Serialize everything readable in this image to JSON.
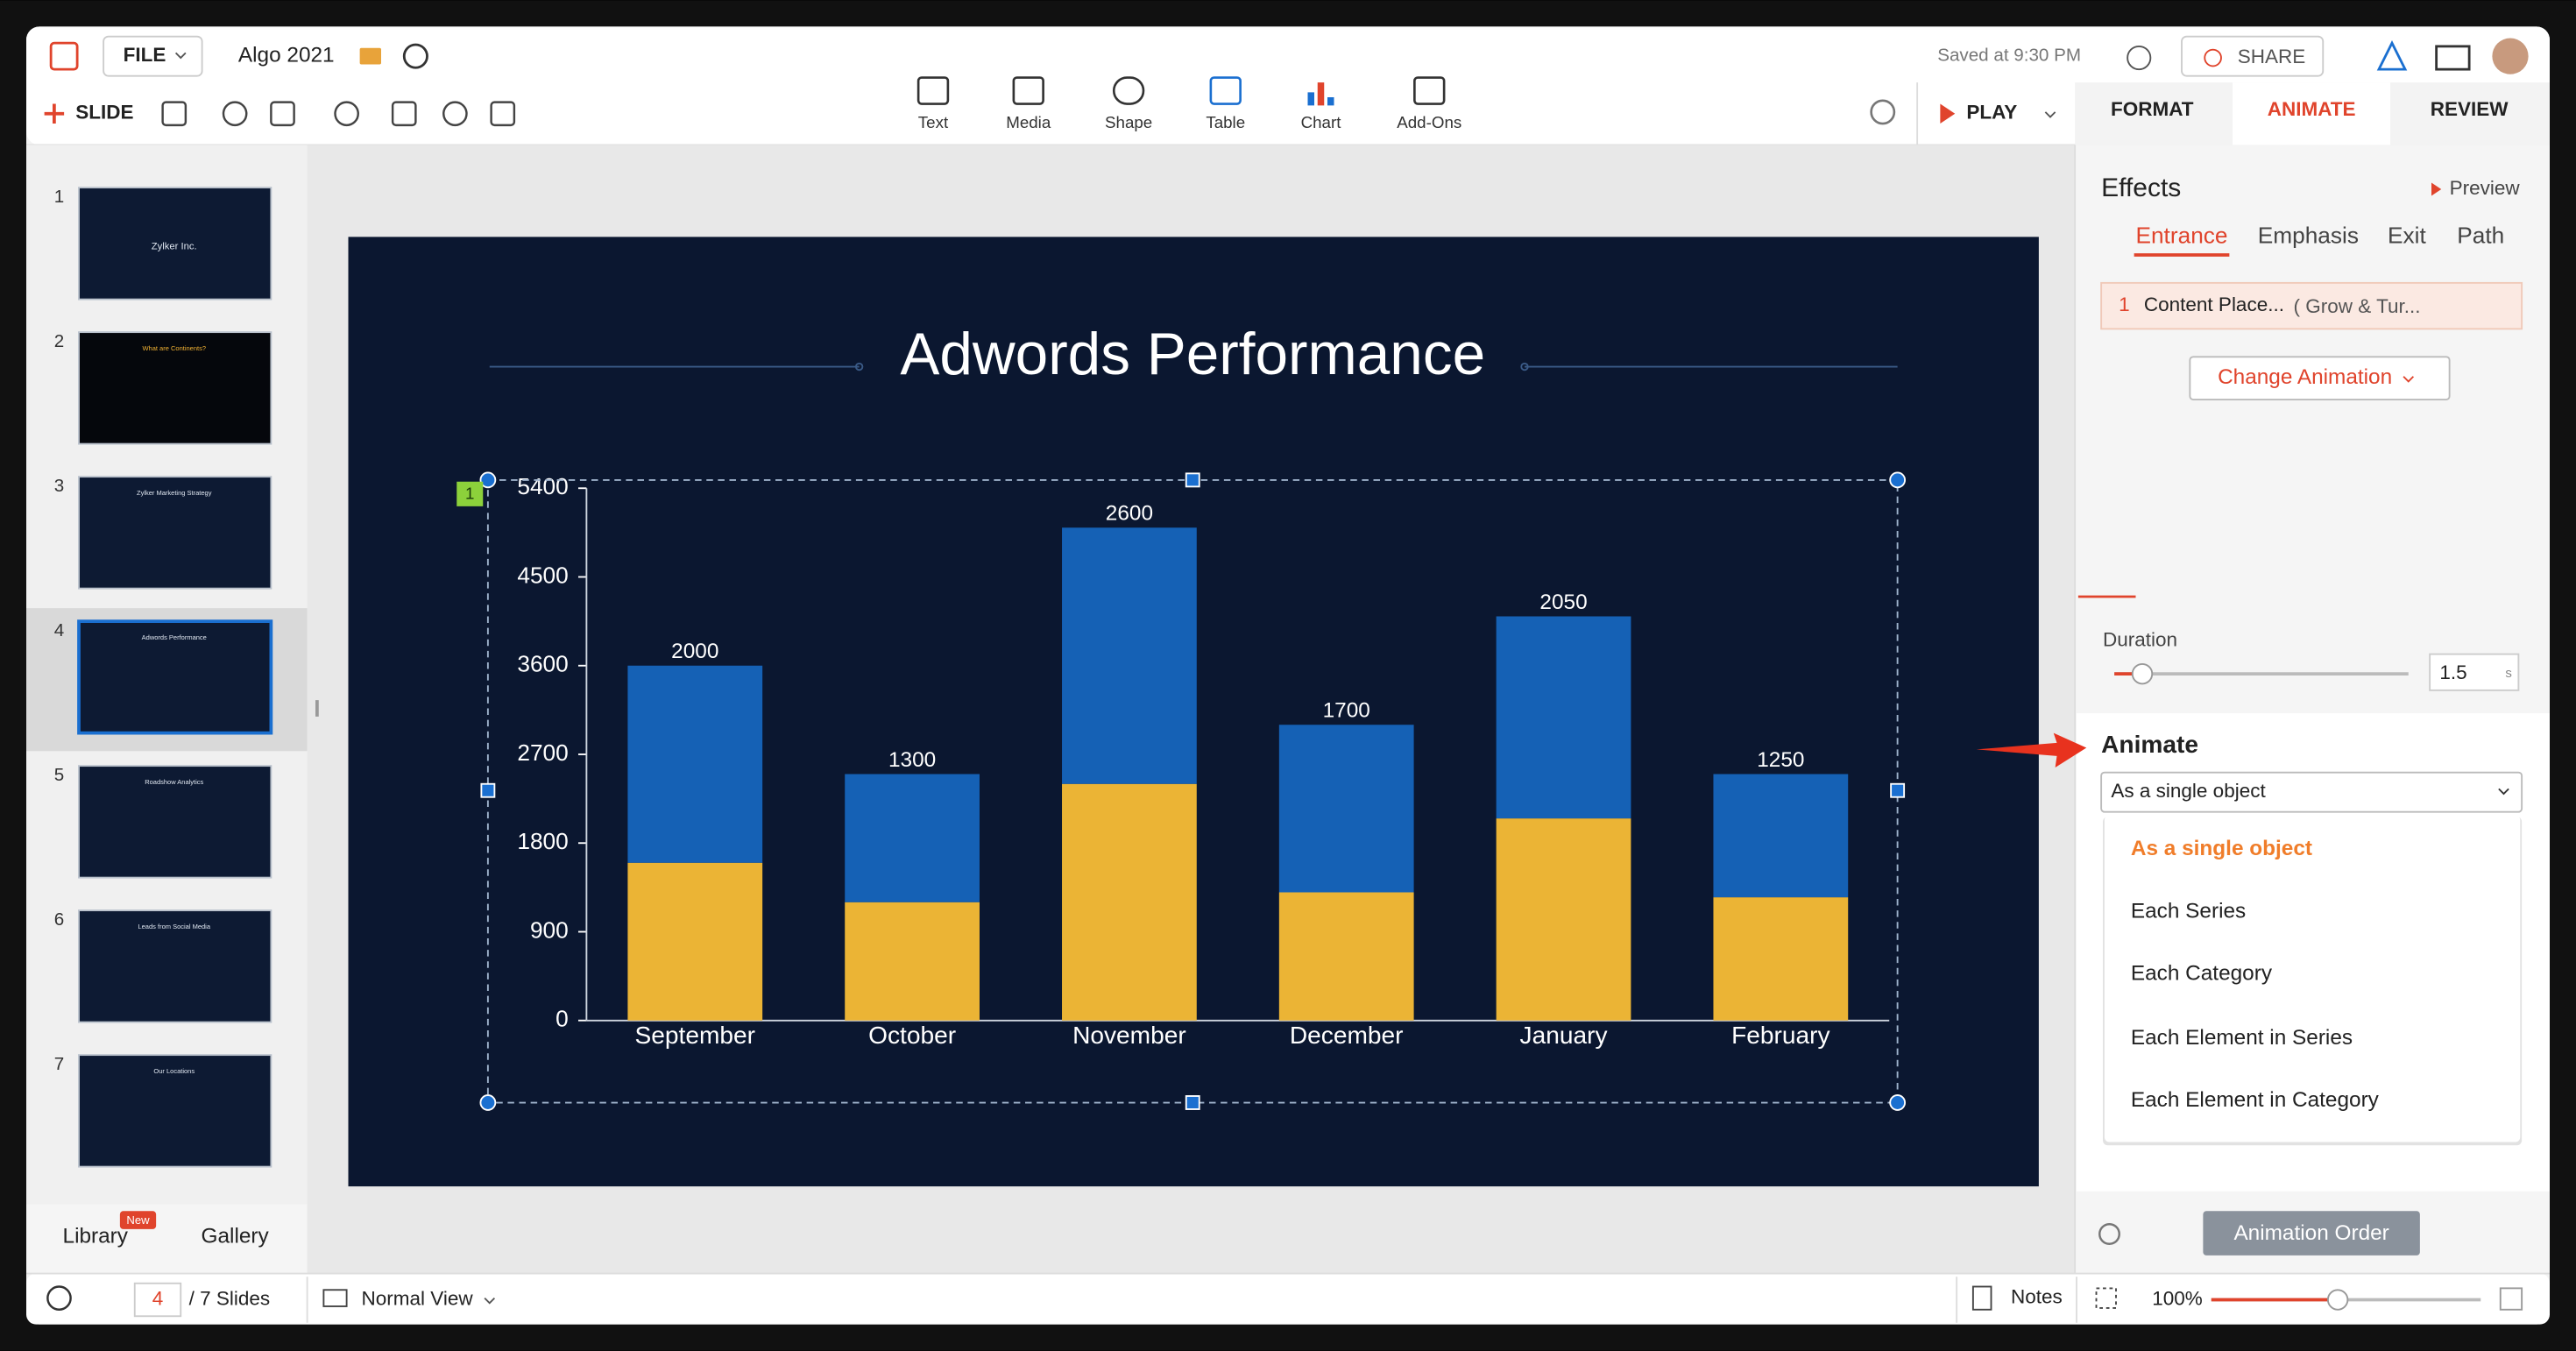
{
  "app": {
    "file_menu": "FILE",
    "document_title": "Algo 2021",
    "saved_status": "Saved at 9:30 PM",
    "share": "SHARE",
    "new_slide": "SLIDE",
    "insert_tools": [
      "Text",
      "Media",
      "Shape",
      "Table",
      "Chart",
      "Add-Ons"
    ],
    "play": "PLAY",
    "tabs": [
      "FORMAT",
      "ANIMATE",
      "REVIEW"
    ]
  },
  "slides_panel": {
    "slides": [
      {
        "number": "1",
        "title": "Zylker Inc."
      },
      {
        "number": "2",
        "title": "What are Continents?"
      },
      {
        "number": "3",
        "title": "Zylker Marketing Strategy"
      },
      {
        "number": "4",
        "title": "Adwords Performance"
      },
      {
        "number": "5",
        "title": "Roadshow Analytics"
      },
      {
        "number": "6",
        "title": "Leads from Social Media"
      },
      {
        "number": "7",
        "title": "Our Locations"
      }
    ],
    "library": "Library",
    "library_badge": "New",
    "gallery": "Gallery"
  },
  "slide": {
    "selection_badge": "1",
    "chart": {
      "type": "stacked-bar",
      "title": "Adwords Performance",
      "categories": [
        "September",
        "October",
        "November",
        "December",
        "January",
        "February"
      ],
      "series": [
        {
          "color": "#ebb435",
          "values": [
            1600,
            1200,
            2400,
            1300,
            2050,
            1250
          ]
        },
        {
          "color": "#1561b5",
          "values": [
            2000,
            1300,
            2600,
            1700,
            2050,
            1250
          ]
        }
      ],
      "ylim": [
        0,
        5400
      ],
      "yticks": [
        0,
        900,
        1800,
        2700,
        3600,
        4500,
        5400
      ]
    }
  },
  "animation_panel": {
    "effects": "Effects",
    "preview": "Preview",
    "effect_tabs": [
      "Entrance",
      "Emphasis",
      "Exit",
      "Path"
    ],
    "item_number": "1",
    "item_name": "Content Place...",
    "item_effect": "( Grow & Tur...",
    "change_animation": "Change Animation",
    "duration_label": "Duration",
    "duration_value": "1.5",
    "duration_unit": "s",
    "animate_label": "Animate",
    "animate_selected": "As a single object",
    "animate_options": [
      "As a single object",
      "Each Series",
      "Each Category",
      "Each Element in Series",
      "Each Element in Category"
    ],
    "animation_order": "Animation Order"
  },
  "status_bar": {
    "current_slide": "4",
    "slide_count": "/ 7 Slides",
    "view_mode": "Normal View",
    "notes": "Notes",
    "zoom": "100%"
  }
}
